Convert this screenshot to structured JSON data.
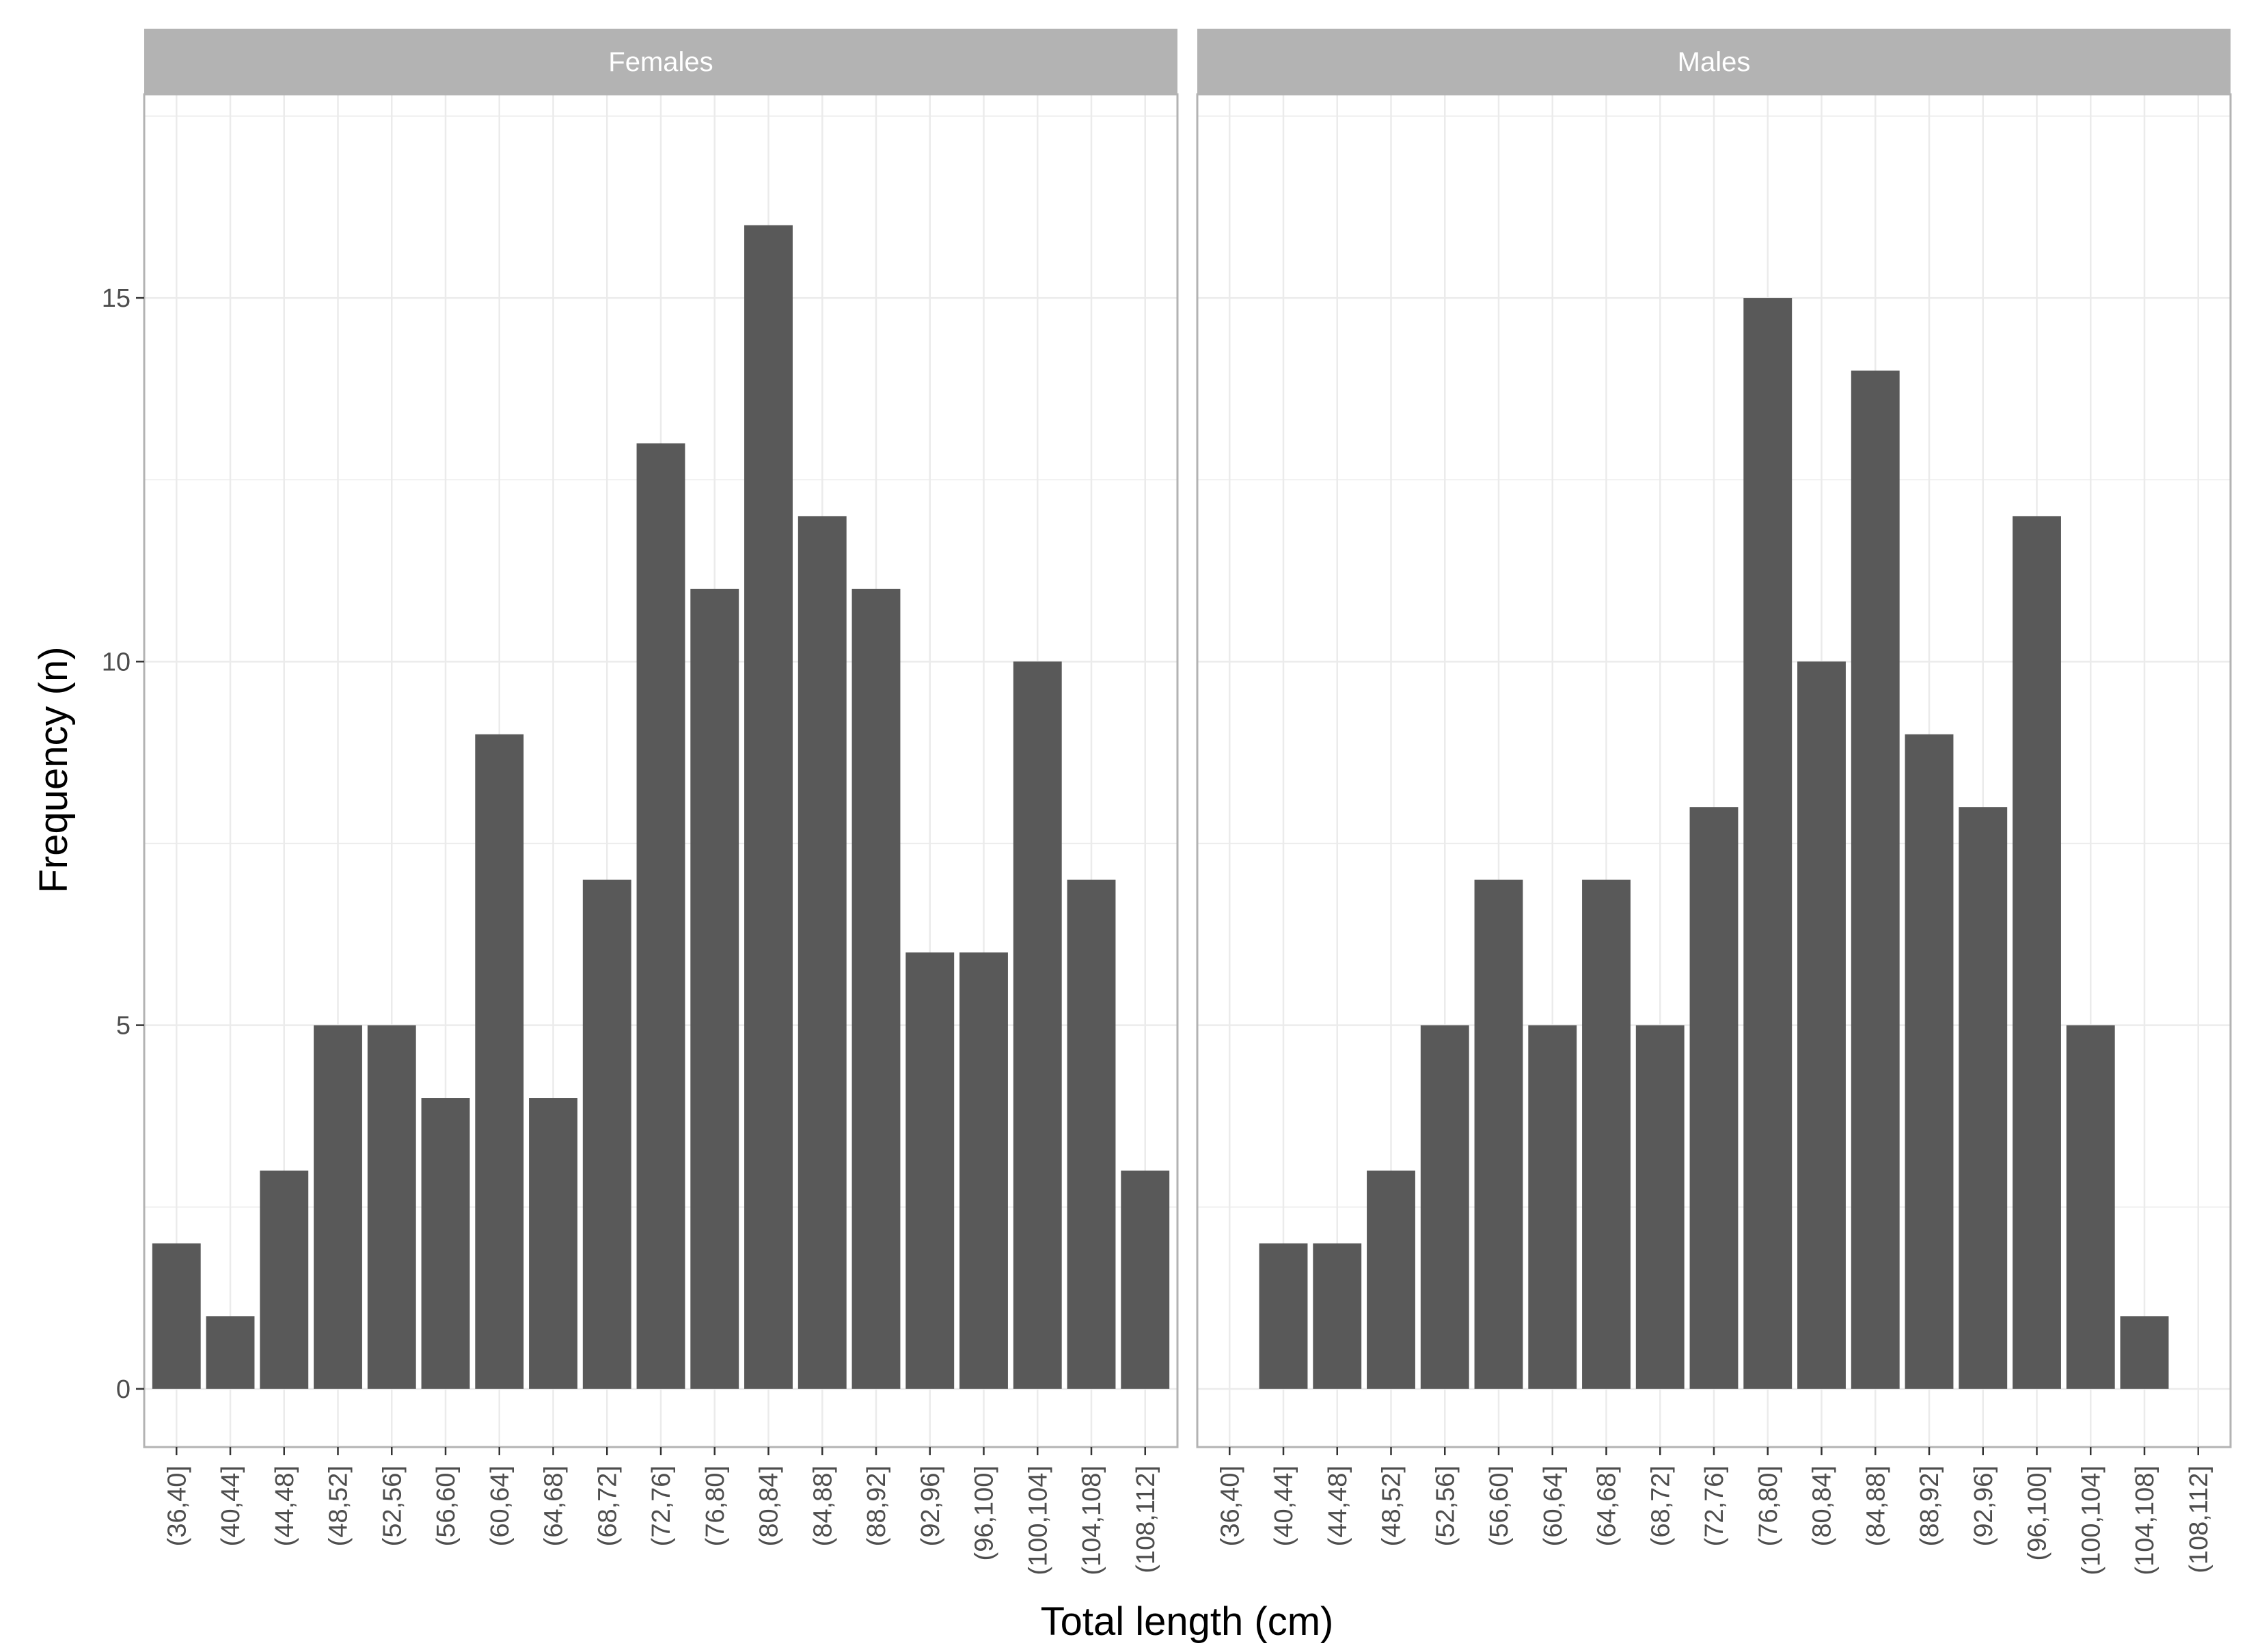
{
  "chart_data": {
    "type": "bar",
    "xlabel": "Total length (cm)",
    "ylabel": "Frequency (n)",
    "ylim": [
      -0.8,
      17.8
    ],
    "yticks": [
      0,
      5,
      10,
      15
    ],
    "grid": true,
    "legend": "none",
    "colors": {
      "bar": "#595959",
      "strip": "#b3b3b3",
      "grid": "#ebebeb",
      "panel_border": "#b3b3b3"
    },
    "categories": [
      "(36,40]",
      "(40,44]",
      "(44,48]",
      "(48,52]",
      "(52,56]",
      "(56,60]",
      "(60,64]",
      "(64,68]",
      "(68,72]",
      "(72,76]",
      "(76,80]",
      "(80,84]",
      "(84,88]",
      "(88,92]",
      "(92,96]",
      "(96,100]",
      "(100,104]",
      "(104,108]",
      "(108,112]"
    ],
    "panels": [
      {
        "name": "Females",
        "values": [
          2,
          1,
          3,
          5,
          5,
          4,
          9,
          4,
          7,
          13,
          11,
          16,
          12,
          11,
          6,
          6,
          10,
          7,
          3
        ]
      },
      {
        "name": "Males",
        "values": [
          0,
          2,
          2,
          3,
          5,
          7,
          5,
          7,
          5,
          8,
          15,
          10,
          14,
          9,
          8,
          12,
          5,
          1,
          0
        ]
      }
    ]
  }
}
